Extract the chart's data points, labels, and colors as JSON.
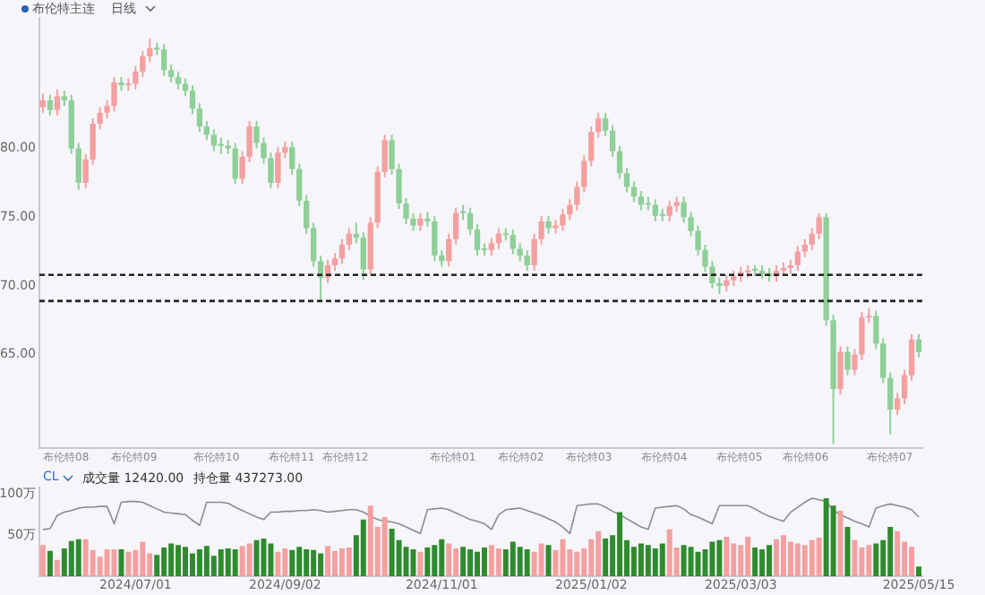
{
  "chart_data": [
    {
      "type": "candlestick",
      "title": "布伦特主连",
      "subtitle": "日线",
      "tick_labels": "y",
      "categories": [
        null,
        null,
        null,
        null,
        null,
        null,
        null,
        null,
        null,
        null,
        null,
        null,
        null,
        "2024/07/01",
        null,
        null,
        null,
        null,
        null,
        null,
        null,
        null,
        null,
        null,
        null,
        null,
        null,
        null,
        null,
        null,
        null,
        null,
        null,
        null,
        "2024/09/02",
        null,
        null,
        null,
        null,
        null,
        null,
        null,
        null,
        null,
        null,
        null,
        null,
        null,
        null,
        null,
        null,
        null,
        null,
        null,
        null,
        null,
        "2024/11/01",
        null,
        null,
        null,
        null,
        null,
        null,
        null,
        null,
        null,
        null,
        null,
        null,
        null,
        null,
        null,
        null,
        null,
        null,
        null,
        null,
        "2025/01/02",
        null,
        null,
        null,
        null,
        null,
        null,
        null,
        null,
        null,
        null,
        null,
        null,
        null,
        null,
        null,
        null,
        null,
        null,
        null,
        null,
        "2025/03/03",
        null,
        null,
        null,
        null,
        null,
        null,
        null,
        null,
        null,
        null,
        null,
        null,
        null,
        null,
        null,
        null,
        null,
        null,
        null,
        null,
        null,
        null,
        null,
        null,
        "2025/05/15"
      ],
      "ohlc": [
        [
          83.0,
          84.0,
          82.6,
          83.5
        ],
        [
          83.5,
          83.9,
          82.4,
          82.8
        ],
        [
          82.8,
          84.3,
          82.4,
          83.8
        ],
        [
          83.8,
          84.2,
          83.1,
          83.5
        ],
        [
          83.5,
          83.9,
          79.6,
          80.0
        ],
        [
          80.0,
          80.4,
          77.0,
          77.5
        ],
        [
          77.5,
          79.6,
          77.1,
          79.2
        ],
        [
          79.2,
          82.2,
          78.8,
          81.8
        ],
        [
          81.8,
          83.0,
          81.4,
          82.6
        ],
        [
          82.6,
          83.5,
          82.2,
          83.1
        ],
        [
          83.1,
          85.2,
          82.7,
          84.8
        ],
        [
          84.8,
          85.2,
          84.2,
          84.6
        ],
        [
          84.6,
          85.1,
          84.2,
          84.7
        ],
        [
          84.7,
          86.0,
          84.3,
          85.6
        ],
        [
          85.6,
          87.1,
          85.2,
          86.7
        ],
        [
          86.7,
          88.0,
          86.3,
          87.3
        ],
        [
          87.3,
          87.7,
          86.8,
          87.2
        ],
        [
          87.2,
          87.6,
          85.3,
          85.7
        ],
        [
          85.7,
          86.1,
          84.8,
          85.2
        ],
        [
          85.2,
          85.6,
          84.3,
          84.7
        ],
        [
          84.7,
          85.1,
          83.8,
          84.2
        ],
        [
          84.2,
          84.6,
          82.5,
          82.9
        ],
        [
          82.9,
          83.3,
          81.2,
          81.6
        ],
        [
          81.6,
          82.0,
          80.6,
          81.0
        ],
        [
          81.0,
          81.4,
          79.8,
          80.2
        ],
        [
          80.2,
          80.8,
          79.6,
          80.2
        ],
        [
          80.2,
          80.6,
          79.6,
          80.0
        ],
        [
          80.0,
          80.4,
          77.4,
          77.8
        ],
        [
          77.8,
          79.8,
          77.4,
          79.4
        ],
        [
          79.4,
          82.0,
          79.0,
          81.6
        ],
        [
          81.6,
          82.0,
          80.0,
          80.4
        ],
        [
          80.4,
          80.8,
          78.9,
          79.3
        ],
        [
          79.3,
          79.7,
          77.1,
          77.5
        ],
        [
          77.5,
          80.1,
          77.1,
          79.7
        ],
        [
          79.7,
          80.5,
          79.3,
          80.1
        ],
        [
          80.1,
          80.5,
          78.1,
          78.5
        ],
        [
          78.5,
          78.9,
          75.8,
          76.2
        ],
        [
          76.2,
          76.6,
          73.8,
          74.2
        ],
        [
          74.2,
          74.6,
          71.4,
          71.8
        ],
        [
          71.8,
          72.2,
          69.0,
          70.6
        ],
        [
          70.6,
          71.9,
          70.2,
          71.5
        ],
        [
          71.5,
          72.4,
          71.1,
          72.0
        ],
        [
          72.0,
          73.4,
          71.6,
          73.0
        ],
        [
          73.0,
          74.2,
          72.6,
          73.8
        ],
        [
          73.8,
          74.6,
          73.1,
          73.5
        ],
        [
          73.5,
          73.9,
          70.4,
          71.2
        ],
        [
          71.2,
          75.0,
          70.8,
          74.6
        ],
        [
          74.6,
          78.7,
          74.2,
          78.3
        ],
        [
          78.3,
          81.0,
          77.9,
          80.6
        ],
        [
          80.6,
          81.0,
          78.1,
          78.5
        ],
        [
          78.5,
          78.9,
          75.6,
          76.0
        ],
        [
          76.0,
          76.4,
          74.5,
          74.9
        ],
        [
          74.9,
          75.3,
          74.0,
          74.4
        ],
        [
          74.4,
          75.3,
          74.0,
          74.9
        ],
        [
          74.9,
          75.4,
          74.3,
          74.7
        ],
        [
          74.7,
          75.1,
          71.8,
          72.2
        ],
        [
          72.2,
          72.6,
          71.4,
          71.8
        ],
        [
          71.8,
          73.8,
          71.4,
          73.4
        ],
        [
          73.4,
          75.7,
          73.0,
          75.3
        ],
        [
          75.3,
          75.9,
          74.8,
          75.3
        ],
        [
          75.3,
          75.7,
          73.7,
          74.1
        ],
        [
          74.1,
          74.5,
          72.2,
          72.6
        ],
        [
          72.6,
          73.1,
          72.2,
          72.6
        ],
        [
          72.6,
          73.5,
          72.2,
          73.1
        ],
        [
          73.1,
          74.2,
          72.7,
          73.8
        ],
        [
          73.8,
          74.2,
          73.3,
          73.7
        ],
        [
          73.7,
          74.1,
          72.3,
          72.7
        ],
        [
          72.7,
          73.1,
          71.8,
          72.2
        ],
        [
          72.2,
          72.6,
          71.1,
          71.5
        ],
        [
          71.5,
          73.8,
          71.1,
          73.4
        ],
        [
          73.4,
          75.1,
          73.0,
          74.7
        ],
        [
          74.7,
          75.1,
          73.8,
          74.2
        ],
        [
          74.2,
          74.8,
          73.8,
          74.4
        ],
        [
          74.4,
          75.6,
          74.0,
          75.2
        ],
        [
          75.2,
          76.3,
          74.8,
          75.9
        ],
        [
          75.9,
          77.6,
          75.5,
          77.2
        ],
        [
          77.2,
          79.5,
          76.8,
          79.1
        ],
        [
          79.1,
          81.6,
          78.7,
          81.2
        ],
        [
          81.2,
          82.6,
          80.8,
          82.2
        ],
        [
          82.2,
          82.6,
          80.9,
          81.3
        ],
        [
          81.3,
          81.7,
          79.4,
          79.8
        ],
        [
          79.8,
          80.2,
          77.8,
          78.2
        ],
        [
          78.2,
          78.6,
          76.8,
          77.2
        ],
        [
          77.2,
          77.6,
          76.1,
          76.5
        ],
        [
          76.5,
          76.9,
          75.5,
          75.9
        ],
        [
          75.9,
          76.5,
          75.5,
          75.9
        ],
        [
          75.9,
          76.3,
          74.7,
          75.1
        ],
        [
          75.1,
          75.6,
          74.7,
          75.1
        ],
        [
          75.1,
          76.2,
          74.7,
          75.8
        ],
        [
          75.8,
          76.5,
          75.4,
          76.1
        ],
        [
          76.1,
          76.5,
          74.6,
          75.0
        ],
        [
          75.0,
          75.4,
          73.6,
          74.0
        ],
        [
          74.0,
          74.4,
          72.2,
          72.6
        ],
        [
          72.6,
          73.0,
          71.0,
          71.4
        ],
        [
          71.4,
          71.8,
          69.8,
          70.2
        ],
        [
          70.2,
          70.6,
          69.4,
          70.0
        ],
        [
          70.0,
          70.8,
          69.6,
          70.4
        ],
        [
          70.4,
          71.1,
          70.0,
          70.7
        ],
        [
          70.7,
          71.4,
          70.3,
          71.0
        ],
        [
          71.0,
          71.5,
          70.6,
          71.1
        ],
        [
          71.1,
          71.5,
          70.7,
          71.1
        ],
        [
          71.1,
          71.5,
          70.5,
          70.9
        ],
        [
          70.9,
          71.3,
          70.3,
          70.7
        ],
        [
          70.7,
          71.5,
          70.3,
          71.1
        ],
        [
          71.1,
          71.7,
          70.7,
          71.3
        ],
        [
          71.3,
          71.9,
          70.9,
          71.5
        ],
        [
          71.5,
          72.9,
          71.1,
          72.5
        ],
        [
          72.5,
          73.4,
          72.1,
          73.0
        ],
        [
          73.0,
          74.2,
          72.6,
          73.8
        ],
        [
          73.8,
          75.3,
          73.4,
          75.0
        ],
        [
          75.0,
          75.3,
          67.1,
          67.5
        ],
        [
          67.5,
          67.9,
          58.5,
          62.5
        ],
        [
          62.5,
          65.6,
          62.1,
          65.2
        ],
        [
          65.2,
          65.6,
          63.5,
          63.9
        ],
        [
          63.9,
          65.4,
          63.5,
          65.0
        ],
        [
          65.0,
          68.1,
          64.6,
          67.7
        ],
        [
          67.7,
          68.4,
          67.3,
          67.8
        ],
        [
          67.8,
          68.2,
          65.4,
          65.8
        ],
        [
          65.8,
          66.2,
          62.9,
          63.3
        ],
        [
          63.3,
          63.7,
          59.2,
          61.0
        ],
        [
          61.0,
          62.2,
          60.6,
          61.8
        ],
        [
          61.8,
          63.9,
          61.4,
          63.5
        ],
        [
          63.5,
          66.5,
          63.1,
          66.1
        ],
        [
          66.1,
          66.5,
          64.8,
          65.2
        ]
      ],
      "ylim": [
        58.2,
        89.5
      ],
      "yticks": [
        {
          "value": 65,
          "label": "65.00"
        },
        {
          "value": 70,
          "label": "70.00"
        },
        {
          "value": 75,
          "label": "75.00"
        },
        {
          "value": 80,
          "label": "80.00"
        }
      ],
      "ref_lines": [
        {
          "axis": "y",
          "value": 70.8,
          "color": "#222222",
          "line_style": "dashed"
        },
        {
          "axis": "y",
          "value": 68.9,
          "color": "#222222",
          "line_style": "dashed"
        }
      ],
      "annotations": [
        "布伦特08",
        "布伦特09",
        "布伦特10",
        "布伦特11",
        "布伦特12",
        "布伦特01",
        "布伦特02",
        "布伦特03",
        "布伦特04",
        "布伦特05",
        "布伦特06",
        "布伦特07"
      ]
    },
    {
      "type": "bar",
      "title": "CL",
      "categories": [
        null,
        null,
        null,
        null,
        null,
        null,
        null,
        null,
        null,
        null,
        null,
        null,
        null,
        "2024/07/01",
        null,
        null,
        null,
        null,
        null,
        null,
        null,
        null,
        null,
        null,
        null,
        null,
        null,
        null,
        null,
        null,
        null,
        null,
        null,
        null,
        "2024/09/02",
        null,
        null,
        null,
        null,
        null,
        null,
        null,
        null,
        null,
        null,
        null,
        null,
        null,
        null,
        null,
        null,
        null,
        null,
        null,
        null,
        null,
        "2024/11/01",
        null,
        null,
        null,
        null,
        null,
        null,
        null,
        null,
        null,
        null,
        null,
        null,
        null,
        null,
        null,
        null,
        null,
        null,
        null,
        null,
        "2025/01/02",
        null,
        null,
        null,
        null,
        null,
        null,
        null,
        null,
        null,
        null,
        null,
        null,
        null,
        null,
        null,
        null,
        null,
        null,
        null,
        null,
        "2025/03/03",
        null,
        null,
        null,
        null,
        null,
        null,
        null,
        null,
        null,
        null,
        null,
        null,
        null,
        null,
        null,
        null,
        null,
        null,
        null,
        null,
        null,
        null,
        null,
        null,
        "2025/05/15"
      ],
      "series": [
        {
          "type": "bar",
          "values": [
            38,
            31,
            20,
            34,
            43,
            45,
            45,
            32,
            24,
            33,
            33,
            33,
            30,
            32,
            42,
            28,
            26,
            35,
            40,
            38,
            36,
            28,
            33,
            37,
            25,
            33,
            34,
            33,
            37,
            40,
            44,
            46,
            40,
            30,
            34,
            32,
            36,
            33,
            32,
            28,
            37,
            31,
            34,
            35,
            50,
            69,
            86,
            60,
            72,
            58,
            44,
            36,
            33,
            30,
            35,
            38,
            45,
            40,
            34,
            36,
            33,
            30,
            35,
            38,
            34,
            33,
            42,
            36,
            33,
            30,
            40,
            38,
            32,
            45,
            33,
            30,
            34,
            45,
            55,
            46,
            50,
            78,
            44,
            36,
            40,
            38,
            34,
            40,
            57,
            35,
            38,
            36,
            30,
            33,
            42,
            44,
            48,
            40,
            38,
            48,
            35,
            33,
            38,
            45,
            50,
            42,
            40,
            38,
            44,
            47,
            95,
            86,
            80,
            60,
            44,
            35,
            38,
            40,
            44,
            60,
            55,
            42,
            36,
            12
          ],
          "colors": [
            "#f4a0a0",
            "#2e8b2e",
            "#f4a0a0",
            "#2e8b2e",
            "#2e8b2e",
            "#2e8b2e",
            "#f4a0a0",
            "#f4a0a0",
            "#f4a0a0",
            "#f4a0a0",
            "#f4a0a0",
            "#2e8b2e",
            "#f4a0a0",
            "#f4a0a0",
            "#f4a0a0",
            "#f4a0a0",
            "#2e8b2e",
            "#2e8b2e",
            "#2e8b2e",
            "#2e8b2e",
            "#2e8b2e",
            "#2e8b2e",
            "#2e8b2e",
            "#2e8b2e",
            "#2e8b2e",
            "#2e8b2e",
            "#2e8b2e",
            "#2e8b2e",
            "#f4a0a0",
            "#f4a0a0",
            "#2e8b2e",
            "#2e8b2e",
            "#2e8b2e",
            "#f4a0a0",
            "#f4a0a0",
            "#2e8b2e",
            "#2e8b2e",
            "#2e8b2e",
            "#2e8b2e",
            "#2e8b2e",
            "#f4a0a0",
            "#f4a0a0",
            "#f4a0a0",
            "#f4a0a0",
            "#2e8b2e",
            "#2e8b2e",
            "#f4a0a0",
            "#f4a0a0",
            "#f4a0a0",
            "#2e8b2e",
            "#2e8b2e",
            "#2e8b2e",
            "#2e8b2e",
            "#f4a0a0",
            "#2e8b2e",
            "#2e8b2e",
            "#2e8b2e",
            "#f4a0a0",
            "#f4a0a0",
            "#2e8b2e",
            "#2e8b2e",
            "#2e8b2e",
            "#2e8b2e",
            "#f4a0a0",
            "#f4a0a0",
            "#2e8b2e",
            "#2e8b2e",
            "#2e8b2e",
            "#2e8b2e",
            "#f4a0a0",
            "#f4a0a0",
            "#2e8b2e",
            "#f4a0a0",
            "#f4a0a0",
            "#f4a0a0",
            "#f4a0a0",
            "#f4a0a0",
            "#f4a0a0",
            "#f4a0a0",
            "#2e8b2e",
            "#2e8b2e",
            "#2e8b2e",
            "#2e8b2e",
            "#2e8b2e",
            "#2e8b2e",
            "#2e8b2e",
            "#2e8b2e",
            "#2e8b2e",
            "#f4a0a0",
            "#f4a0a0",
            "#2e8b2e",
            "#2e8b2e",
            "#2e8b2e",
            "#2e8b2e",
            "#2e8b2e",
            "#2e8b2e",
            "#f4a0a0",
            "#f4a0a0",
            "#f4a0a0",
            "#f4a0a0",
            "#2e8b2e",
            "#2e8b2e",
            "#2e8b2e",
            "#f4a0a0",
            "#f4a0a0",
            "#f4a0a0",
            "#f4a0a0",
            "#f4a0a0",
            "#f4a0a0",
            "#f4a0a0",
            "#2e8b2e",
            "#2e8b2e",
            "#f4a0a0",
            "#2e8b2e",
            "#f4a0a0",
            "#f4a0a0",
            "#f4a0a0",
            "#2e8b2e",
            "#2e8b2e",
            "#2e8b2e",
            "#f4a0a0",
            "#f4a0a0",
            "#f4a0a0",
            "#2e8b2e"
          ]
        },
        {
          "type": "line",
          "color": "#8c8c8c",
          "values": [
            57,
            58,
            74,
            78,
            80,
            83,
            84,
            84,
            85,
            85,
            64,
            90,
            91,
            91,
            90,
            86,
            82,
            78,
            77,
            76,
            75,
            68,
            62,
            90,
            90,
            90,
            89,
            84,
            80,
            76,
            72,
            69,
            78,
            78,
            79,
            79,
            80,
            80,
            81,
            80,
            78,
            79,
            80,
            81,
            81,
            78,
            73,
            69,
            67,
            66,
            64,
            60,
            56,
            52,
            81,
            82,
            83,
            81,
            77,
            73,
            69,
            67,
            64,
            57,
            75,
            81,
            82,
            83,
            80,
            77,
            74,
            70,
            66,
            60,
            52,
            86,
            87,
            88,
            88,
            84,
            79,
            75,
            70,
            65,
            60,
            57,
            83,
            84,
            85,
            86,
            82,
            75,
            72,
            68,
            64,
            86,
            86,
            86,
            86,
            86,
            82,
            77,
            73,
            70,
            67,
            78,
            84,
            90,
            95,
            93,
            91,
            80,
            75,
            71,
            67,
            64,
            60,
            83,
            86,
            88,
            86,
            84,
            81,
            72
          ]
        }
      ],
      "ylim": [
        0,
        108
      ],
      "yticks": [
        {
          "value": 50,
          "label": "50万"
        },
        {
          "value": 100,
          "label": "100万"
        }
      ],
      "annotations": [
        "成交量 12420.00",
        "持仓量 437273.00"
      ]
    }
  ]
}
